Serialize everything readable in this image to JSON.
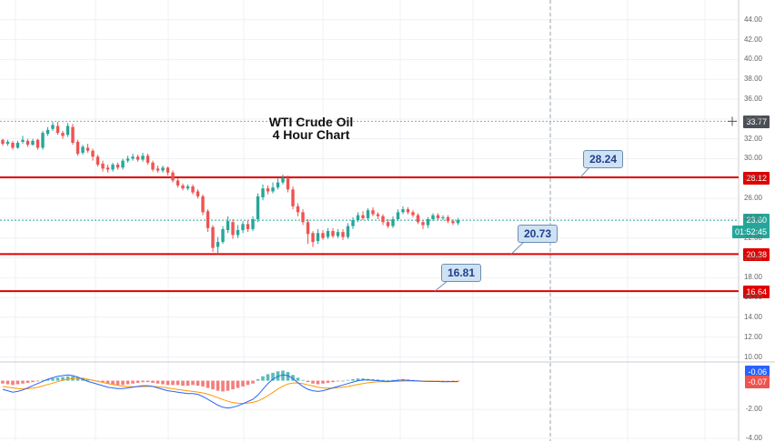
{
  "chart_data": [
    {
      "type": "candlestick",
      "title": "WTI Crude Oil",
      "subtitle": "4 Hour Chart",
      "ylim": [
        9.5,
        46
      ],
      "y_ticks": [
        "44.00",
        "42.00",
        "40.00",
        "38.00",
        "36.00",
        "34.00",
        "32.00",
        "30.00",
        "28.00",
        "26.00",
        "24.00",
        "22.00",
        "20.00",
        "18.00",
        "16.00",
        "14.00",
        "12.00",
        "10.00"
      ],
      "candles": [
        [
          31.9,
          31.5,
          32.0,
          31.3
        ],
        [
          31.5,
          31.7,
          31.9,
          31.3
        ],
        [
          31.6,
          31.1,
          31.8,
          30.9
        ],
        [
          31.1,
          31.6,
          31.8,
          31.0
        ],
        [
          31.7,
          31.9,
          32.3,
          31.5
        ],
        [
          31.8,
          31.4,
          32.0,
          31.2
        ],
        [
          31.4,
          31.8,
          32.0,
          31.3
        ],
        [
          31.9,
          31.1,
          32.0,
          30.9
        ],
        [
          31.1,
          32.6,
          32.8,
          30.9
        ],
        [
          32.5,
          32.9,
          33.2,
          32.3
        ],
        [
          33.0,
          33.4,
          33.7,
          32.8
        ],
        [
          33.3,
          32.6,
          33.7,
          32.4
        ],
        [
          32.6,
          32.3,
          32.8,
          32.0
        ],
        [
          32.4,
          33.3,
          33.6,
          32.2
        ],
        [
          33.2,
          31.6,
          33.5,
          31.4
        ],
        [
          31.7,
          30.5,
          31.9,
          30.3
        ],
        [
          30.6,
          31.2,
          31.4,
          30.4
        ],
        [
          31.1,
          30.8,
          31.5,
          30.6
        ],
        [
          30.8,
          30.2,
          31.0,
          29.8
        ],
        [
          30.2,
          29.4,
          30.4,
          29.2
        ],
        [
          29.5,
          29.0,
          29.8,
          28.7
        ],
        [
          29.1,
          28.9,
          29.4,
          28.6
        ],
        [
          28.9,
          29.4,
          29.6,
          28.7
        ],
        [
          29.4,
          29.1,
          29.6,
          28.9
        ],
        [
          29.1,
          29.8,
          30.0,
          28.9
        ],
        [
          29.8,
          30.0,
          30.3,
          29.6
        ],
        [
          30.0,
          30.2,
          30.5,
          29.8
        ],
        [
          30.2,
          29.9,
          30.4,
          29.7
        ],
        [
          29.9,
          30.3,
          30.6,
          29.7
        ],
        [
          30.3,
          29.6,
          30.5,
          29.4
        ],
        [
          29.6,
          28.9,
          29.8,
          28.7
        ],
        [
          29.0,
          28.8,
          29.3,
          28.6
        ],
        [
          28.8,
          29.1,
          29.3,
          28.6
        ],
        [
          29.1,
          28.6,
          29.2,
          28.3
        ],
        [
          28.6,
          27.8,
          28.8,
          27.6
        ],
        [
          27.8,
          27.3,
          28.0,
          27.1
        ],
        [
          27.3,
          27.0,
          27.5,
          26.8
        ],
        [
          27.0,
          27.2,
          27.4,
          26.8
        ],
        [
          27.2,
          26.6,
          27.4,
          26.4
        ],
        [
          26.7,
          26.2,
          26.9,
          26.0
        ],
        [
          26.2,
          24.6,
          26.4,
          24.3
        ],
        [
          24.7,
          23.0,
          24.9,
          22.6
        ],
        [
          23.1,
          21.0,
          23.3,
          20.6
        ],
        [
          21.1,
          21.6,
          22.1,
          20.4
        ],
        [
          21.6,
          22.9,
          23.2,
          21.4
        ],
        [
          22.8,
          23.7,
          24.2,
          22.5
        ],
        [
          23.6,
          22.3,
          23.9,
          21.9
        ],
        [
          22.3,
          22.8,
          23.3,
          22.0
        ],
        [
          22.8,
          23.4,
          23.7,
          22.5
        ],
        [
          23.4,
          22.9,
          23.8,
          22.6
        ],
        [
          22.9,
          23.9,
          24.2,
          22.7
        ],
        [
          23.9,
          26.2,
          26.5,
          23.6
        ],
        [
          26.1,
          27.0,
          27.4,
          25.8
        ],
        [
          27.0,
          26.7,
          27.3,
          26.4
        ],
        [
          26.7,
          27.1,
          27.6,
          26.5
        ],
        [
          27.1,
          27.6,
          28.0,
          26.9
        ],
        [
          27.6,
          28.1,
          28.4,
          27.4
        ],
        [
          28.0,
          26.9,
          28.3,
          26.6
        ],
        [
          26.9,
          25.2,
          27.2,
          24.9
        ],
        [
          25.2,
          24.6,
          25.5,
          24.2
        ],
        [
          24.6,
          23.6,
          24.9,
          23.3
        ],
        [
          23.6,
          22.4,
          23.9,
          21.4
        ],
        [
          22.5,
          21.6,
          22.7,
          21.1
        ],
        [
          21.7,
          22.5,
          22.9,
          21.4
        ],
        [
          22.5,
          22.0,
          22.8,
          21.8
        ],
        [
          22.1,
          22.7,
          23.0,
          21.9
        ],
        [
          22.7,
          22.2,
          23.0,
          22.0
        ],
        [
          22.2,
          22.6,
          22.9,
          22.0
        ],
        [
          22.6,
          22.1,
          22.9,
          21.8
        ],
        [
          22.1,
          23.2,
          23.5,
          21.9
        ],
        [
          23.2,
          23.8,
          24.1,
          22.9
        ],
        [
          23.8,
          24.3,
          24.6,
          23.6
        ],
        [
          24.3,
          24.0,
          24.7,
          23.8
        ],
        [
          24.0,
          24.8,
          25.0,
          23.8
        ],
        [
          24.8,
          24.4,
          25.1,
          24.2
        ],
        [
          24.4,
          24.2,
          24.6,
          23.9
        ],
        [
          24.2,
          23.6,
          24.4,
          23.3
        ],
        [
          23.6,
          23.2,
          23.9,
          23.0
        ],
        [
          23.2,
          23.9,
          24.2,
          23.0
        ],
        [
          23.9,
          24.6,
          24.9,
          23.7
        ],
        [
          24.6,
          24.9,
          25.2,
          24.4
        ],
        [
          24.9,
          24.6,
          25.1,
          24.4
        ],
        [
          24.6,
          24.3,
          24.8,
          24.1
        ],
        [
          24.3,
          23.6,
          24.5,
          23.4
        ],
        [
          23.6,
          23.3,
          23.8,
          22.9
        ],
        [
          23.3,
          23.9,
          24.1,
          23.0
        ],
        [
          23.9,
          24.3,
          24.5,
          23.7
        ],
        [
          24.3,
          24.0,
          24.5,
          23.8
        ],
        [
          24.0,
          24.1,
          24.3,
          23.8
        ],
        [
          24.1,
          23.7,
          24.3,
          23.5
        ],
        [
          23.7,
          23.5,
          23.9,
          23.3
        ],
        [
          23.5,
          23.8,
          24.0,
          23.3
        ]
      ],
      "horizontal_lines": [
        {
          "value": 28.12,
          "color": "#e00000",
          "label": "28.12"
        },
        {
          "value": 20.38,
          "color": "#e00000",
          "label": "20.38"
        },
        {
          "value": 16.64,
          "color": "#e00000",
          "label": "16.64"
        }
      ],
      "dotted_lines": [
        {
          "value": 33.77,
          "color": "#9aa3ad",
          "label": "33.77"
        },
        {
          "value": 23.8,
          "color": "#26a69a",
          "label": "23.80",
          "countdown": "01:52:45"
        }
      ],
      "callouts": [
        {
          "text": "28.24",
          "value": 28.24
        },
        {
          "text": "20.73",
          "value": 20.73
        },
        {
          "text": "16.81",
          "value": 16.81
        }
      ],
      "up_color": "#26a69a",
      "down_color": "#ef5350",
      "grid": true
    },
    {
      "type": "macd",
      "ylim": [
        -4.2,
        1.3
      ],
      "y_ticks": [
        "-2.00",
        "-4.00"
      ],
      "histogram": [
        -0.2,
        -0.25,
        -0.3,
        -0.25,
        -0.2,
        -0.15,
        -0.1,
        -0.05,
        0.05,
        0.1,
        0.15,
        0.2,
        0.25,
        0.3,
        0.3,
        0.25,
        0.2,
        0.1,
        0.05,
        -0.05,
        -0.1,
        -0.2,
        -0.25,
        -0.3,
        -0.3,
        -0.25,
        -0.2,
        -0.15,
        -0.1,
        -0.1,
        -0.15,
        -0.2,
        -0.25,
        -0.3,
        -0.3,
        -0.3,
        -0.35,
        -0.35,
        -0.3,
        -0.35,
        -0.4,
        -0.5,
        -0.6,
        -0.7,
        -0.75,
        -0.7,
        -0.6,
        -0.5,
        -0.4,
        -0.3,
        -0.2,
        0.1,
        0.3,
        0.45,
        0.55,
        0.65,
        0.7,
        0.6,
        0.4,
        0.2,
        0.05,
        -0.1,
        -0.2,
        -0.25,
        -0.2,
        -0.15,
        -0.1,
        -0.05,
        0.0,
        0.05,
        0.1,
        0.15,
        0.15,
        0.12,
        0.1,
        0.08,
        0.05,
        0.03,
        0.05,
        0.08,
        0.1,
        0.08,
        0.05,
        0.02,
        -0.02,
        -0.03,
        -0.02,
        -0.03,
        -0.05,
        -0.06,
        -0.06,
        -0.06
      ],
      "macd_line": [
        -0.6,
        -0.7,
        -0.8,
        -0.75,
        -0.65,
        -0.5,
        -0.35,
        -0.2,
        -0.05,
        0.1,
        0.2,
        0.3,
        0.35,
        0.4,
        0.35,
        0.25,
        0.1,
        -0.05,
        -0.15,
        -0.25,
        -0.35,
        -0.45,
        -0.5,
        -0.55,
        -0.55,
        -0.5,
        -0.45,
        -0.4,
        -0.35,
        -0.35,
        -0.4,
        -0.5,
        -0.6,
        -0.7,
        -0.75,
        -0.8,
        -0.85,
        -0.9,
        -0.9,
        -0.95,
        -1.1,
        -1.3,
        -1.5,
        -1.7,
        -1.85,
        -1.9,
        -1.85,
        -1.75,
        -1.6,
        -1.45,
        -1.3,
        -1.0,
        -0.6,
        -0.2,
        0.1,
        0.3,
        0.4,
        0.35,
        0.15,
        -0.15,
        -0.4,
        -0.6,
        -0.7,
        -0.75,
        -0.7,
        -0.6,
        -0.5,
        -0.4,
        -0.3,
        -0.2,
        -0.1,
        0.0,
        0.05,
        0.05,
        0.03,
        0.0,
        -0.03,
        -0.05,
        -0.02,
        0.02,
        0.04,
        0.02,
        0.0,
        -0.02,
        -0.04,
        -0.05,
        -0.05,
        -0.06,
        -0.07,
        -0.07,
        -0.06,
        -0.06
      ],
      "signal_line": [
        -0.4,
        -0.45,
        -0.5,
        -0.55,
        -0.57,
        -0.56,
        -0.52,
        -0.45,
        -0.37,
        -0.27,
        -0.17,
        -0.07,
        0.02,
        0.1,
        0.15,
        0.17,
        0.15,
        0.1,
        0.03,
        -0.05,
        -0.12,
        -0.2,
        -0.27,
        -0.33,
        -0.38,
        -0.41,
        -0.42,
        -0.42,
        -0.41,
        -0.4,
        -0.4,
        -0.42,
        -0.46,
        -0.51,
        -0.56,
        -0.61,
        -0.66,
        -0.71,
        -0.75,
        -0.79,
        -0.85,
        -0.94,
        -1.05,
        -1.18,
        -1.31,
        -1.43,
        -1.52,
        -1.57,
        -1.58,
        -1.56,
        -1.51,
        -1.41,
        -1.25,
        -1.04,
        -0.81,
        -0.58,
        -0.38,
        -0.23,
        -0.16,
        -0.16,
        -0.21,
        -0.29,
        -0.37,
        -0.45,
        -0.5,
        -0.52,
        -0.52,
        -0.49,
        -0.45,
        -0.4,
        -0.34,
        -0.27,
        -0.2,
        -0.15,
        -0.11,
        -0.08,
        -0.07,
        -0.07,
        -0.06,
        -0.05,
        -0.03,
        -0.02,
        -0.02,
        -0.02,
        -0.03,
        -0.03,
        -0.04,
        -0.04,
        -0.05,
        -0.06,
        -0.07,
        -0.07
      ],
      "macd_color": "#2962ff",
      "signal_color": "#ff9800",
      "hist_up_color": "#26a69a",
      "hist_down_color": "#ef5350",
      "tags": [
        {
          "label": "-0.06",
          "color": "#2962ff"
        },
        {
          "label": "-0.07",
          "color": "#ef5350"
        }
      ]
    }
  ]
}
